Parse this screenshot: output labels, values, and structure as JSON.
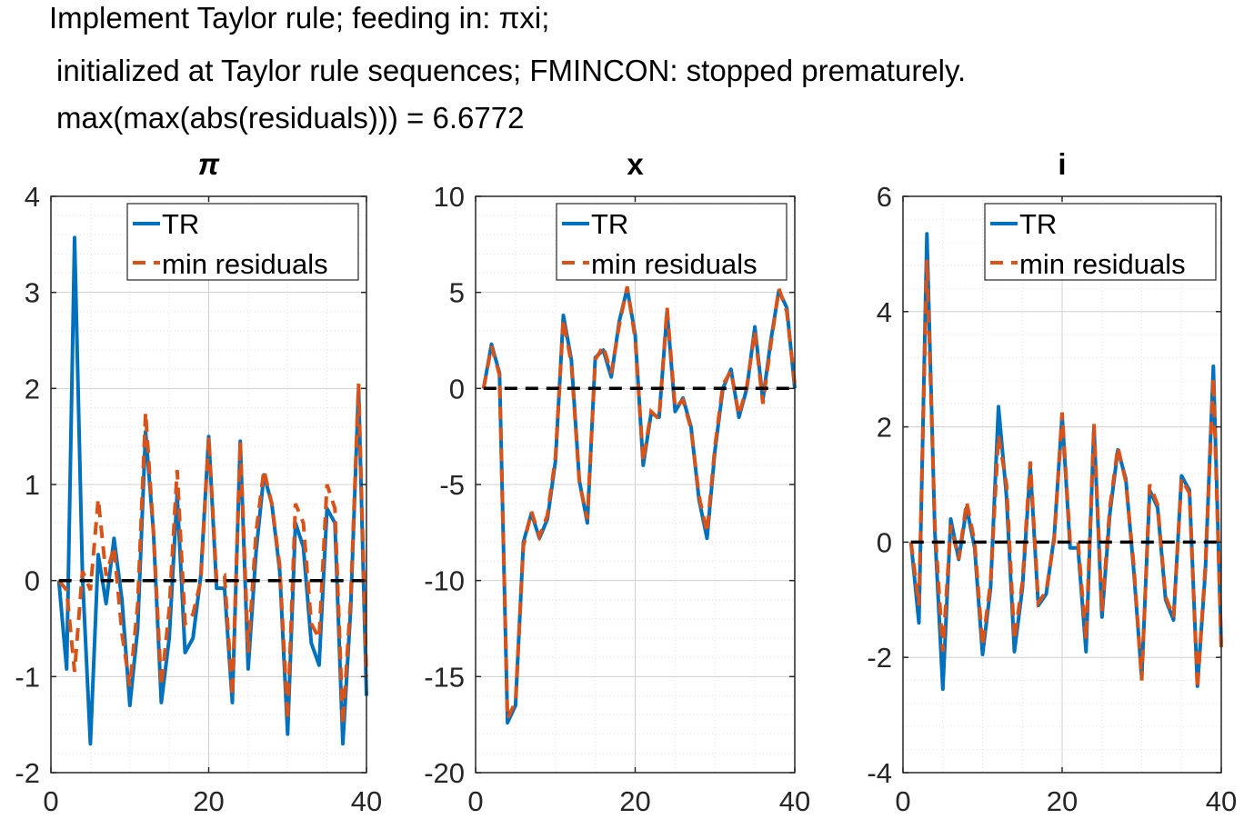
{
  "figure_title": {
    "line1": "Implement Taylor rule; feeding in: πxi;",
    "line2": "initialized at Taylor rule sequences; FMINCON: stopped prematurely.",
    "line3": "max(max(abs(residuals))) = 6.6772"
  },
  "colors": {
    "tr": "#0072BD",
    "min": "#D95319",
    "zero": "#000000",
    "grid": "#d0d0d0"
  },
  "chart_data": [
    {
      "type": "line",
      "title": "π",
      "xlim": [
        0,
        40
      ],
      "ylim": [
        -2,
        4
      ],
      "xticks": [
        0,
        20,
        40
      ],
      "yticks": [
        -2,
        -1,
        0,
        1,
        2,
        3,
        4
      ],
      "legend": [
        "TR",
        "min residuals"
      ],
      "legend_position": "top-right",
      "x": [
        1,
        2,
        3,
        4,
        5,
        6,
        7,
        8,
        9,
        10,
        11,
        12,
        13,
        14,
        15,
        16,
        17,
        18,
        19,
        20,
        21,
        22,
        23,
        24,
        25,
        26,
        27,
        28,
        29,
        30,
        31,
        32,
        33,
        34,
        35,
        36,
        37,
        38,
        39,
        40
      ],
      "series": [
        {
          "name": "TR",
          "style": "solid",
          "values": [
            0,
            -0.92,
            3.57,
            0.05,
            -1.7,
            0.27,
            -0.24,
            0.44,
            -0.2,
            -1.3,
            -0.5,
            1.55,
            0.5,
            -1.27,
            -0.6,
            0.9,
            -0.75,
            -0.6,
            0.05,
            1.5,
            -0.08,
            -0.08,
            -1.27,
            1.45,
            -0.92,
            0.3,
            1.1,
            0.8,
            0.1,
            -1.6,
            0.6,
            0.35,
            -0.65,
            -0.88,
            0.75,
            0.6,
            -1.7,
            -0.3,
            2.0,
            -1.2
          ]
        },
        {
          "name": "min residuals",
          "style": "dashed",
          "values": [
            0,
            -0.1,
            -0.95,
            0.1,
            -0.1,
            0.85,
            0.05,
            0.35,
            -0.55,
            -1.1,
            -0.25,
            1.75,
            0.5,
            -1.1,
            -0.3,
            1.15,
            -0.45,
            -0.35,
            0.0,
            1.5,
            0.0,
            0.05,
            -1.2,
            1.45,
            -0.75,
            0.5,
            1.15,
            0.8,
            0.15,
            -1.45,
            0.8,
            0.6,
            -0.45,
            -0.6,
            1.0,
            0.75,
            -1.5,
            -0.2,
            2.05,
            -1.0
          ]
        },
        {
          "name": "zero",
          "style": "zero",
          "values": [
            0,
            0,
            0,
            0,
            0,
            0,
            0,
            0,
            0,
            0,
            0,
            0,
            0,
            0,
            0,
            0,
            0,
            0,
            0,
            0,
            0,
            0,
            0,
            0,
            0,
            0,
            0,
            0,
            0,
            0,
            0,
            0,
            0,
            0,
            0,
            0,
            0,
            0,
            0,
            0
          ]
        }
      ]
    },
    {
      "type": "line",
      "title": "x",
      "xlim": [
        0,
        40
      ],
      "ylim": [
        -20,
        10
      ],
      "xticks": [
        0,
        20,
        40
      ],
      "yticks": [
        -20,
        -15,
        -10,
        -5,
        0,
        5,
        10
      ],
      "legend": [
        "TR",
        "min residuals"
      ],
      "legend_position": "top-right",
      "x": [
        1,
        2,
        3,
        4,
        5,
        6,
        7,
        8,
        9,
        10,
        11,
        12,
        13,
        14,
        15,
        16,
        17,
        18,
        19,
        20,
        21,
        22,
        23,
        24,
        25,
        26,
        27,
        28,
        29,
        30,
        31,
        32,
        33,
        34,
        35,
        36,
        37,
        38,
        39,
        40
      ],
      "series": [
        {
          "name": "TR",
          "style": "solid",
          "values": [
            0,
            2.3,
            0.8,
            -17.4,
            -16.5,
            -8,
            -6.5,
            -7.8,
            -6.8,
            -3.8,
            3.8,
            1.5,
            -4.8,
            -7,
            1.6,
            2,
            0.6,
            3.5,
            5.2,
            2.8,
            -4,
            -1.3,
            -1.5,
            4,
            -1.2,
            -0.5,
            -2,
            -5.8,
            -7.8,
            -3.2,
            0,
            1,
            -1.5,
            0,
            3.2,
            -0.6,
            2.5,
            5.1,
            4.2,
            0
          ]
        },
        {
          "name": "min residuals",
          "style": "dashed",
          "values": [
            0,
            2.2,
            0.7,
            -17.2,
            -16.3,
            -8.2,
            -6.4,
            -7.7,
            -6.6,
            -3.6,
            3.6,
            1.3,
            -4.9,
            -6.8,
            1.5,
            2.2,
            0.8,
            3.3,
            5.3,
            2.6,
            -3.8,
            -1.2,
            -1.6,
            4.2,
            -1,
            -0.6,
            -2.1,
            -5.6,
            -7.5,
            -3,
            0.2,
            0.9,
            -1.4,
            0.1,
            3,
            -0.8,
            2.3,
            5.2,
            4,
            0.2
          ]
        },
        {
          "name": "zero",
          "style": "zero",
          "values": [
            0,
            0,
            0,
            0,
            0,
            0,
            0,
            0,
            0,
            0,
            0,
            0,
            0,
            0,
            0,
            0,
            0,
            0,
            0,
            0,
            0,
            0,
            0,
            0,
            0,
            0,
            0,
            0,
            0,
            0,
            0,
            0,
            0,
            0,
            0,
            0,
            0,
            0,
            0,
            0
          ]
        }
      ]
    },
    {
      "type": "line",
      "title": "i",
      "xlim": [
        0,
        40
      ],
      "ylim": [
        -4,
        6
      ],
      "xticks": [
        0,
        20,
        40
      ],
      "yticks": [
        -4,
        -2,
        0,
        2,
        4,
        6
      ],
      "legend": [
        "TR",
        "min residuals"
      ],
      "legend_position": "top-right",
      "x": [
        1,
        2,
        3,
        4,
        5,
        6,
        7,
        8,
        9,
        10,
        11,
        12,
        13,
        14,
        15,
        16,
        17,
        18,
        19,
        20,
        21,
        22,
        23,
        24,
        25,
        26,
        27,
        28,
        29,
        30,
        31,
        32,
        33,
        34,
        35,
        36,
        37,
        38,
        39,
        40
      ],
      "series": [
        {
          "name": "TR",
          "style": "solid",
          "values": [
            0,
            -1.4,
            5.35,
            0.2,
            -2.55,
            0.4,
            -0.3,
            0.6,
            -0.1,
            -1.95,
            -0.8,
            2.35,
            0.8,
            -1.9,
            -0.8,
            1.3,
            -1.1,
            -0.9,
            0.1,
            2.2,
            -0.1,
            -0.1,
            -1.9,
            2,
            -1.3,
            0.5,
            1.6,
            1.1,
            -0.5,
            -2.35,
            0.9,
            0.6,
            -1,
            -1.35,
            1.15,
            0.9,
            -2.5,
            -0.5,
            3.05,
            -1.8
          ]
        },
        {
          "name": "min residuals",
          "style": "dashed",
          "values": [
            0,
            -1.1,
            4.9,
            0.3,
            -1.9,
            0.3,
            -0.3,
            0.7,
            0,
            -1.8,
            -0.7,
            1.85,
            1.0,
            -1.7,
            -0.7,
            1.4,
            -1.05,
            -0.85,
            0.05,
            2.25,
            0,
            0,
            -1.7,
            2.05,
            -1.2,
            0.6,
            1.65,
            1.05,
            -0.4,
            -2.4,
            1.0,
            0.65,
            -0.95,
            -1.3,
            1.1,
            0.85,
            -2.55,
            -0.4,
            2.85,
            -1.85
          ]
        },
        {
          "name": "zero",
          "style": "zero",
          "values": [
            0,
            0,
            0,
            0,
            0,
            0,
            0,
            0,
            0,
            0,
            0,
            0,
            0,
            0,
            0,
            0,
            0,
            0,
            0,
            0,
            0,
            0,
            0,
            0,
            0,
            0,
            0,
            0,
            0,
            0,
            0,
            0,
            0,
            0,
            0,
            0,
            0,
            0,
            0,
            0
          ]
        }
      ]
    }
  ]
}
